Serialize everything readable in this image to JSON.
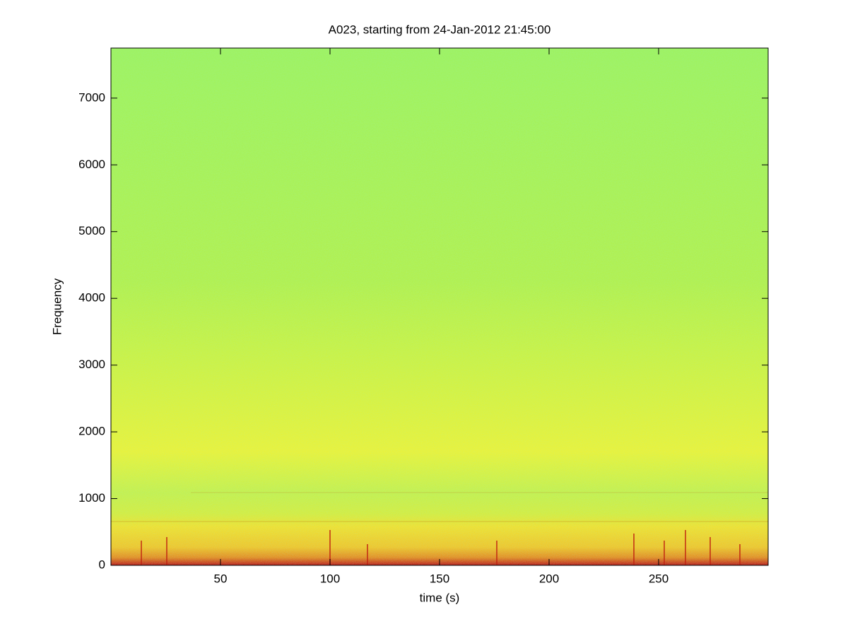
{
  "chart_data": {
    "type": "spectrogram",
    "title": "A023, starting from 24-Jan-2012 21:45:00",
    "x_label": "time (s)",
    "y_label": "Frequency",
    "xlim": [
      0,
      300
    ],
    "ylim": [
      0,
      7750
    ],
    "xticks": [
      50,
      100,
      150,
      200,
      250
    ],
    "yticks": [
      0,
      1000,
      2000,
      3000,
      4000,
      5000,
      6000,
      7000
    ]
  }
}
